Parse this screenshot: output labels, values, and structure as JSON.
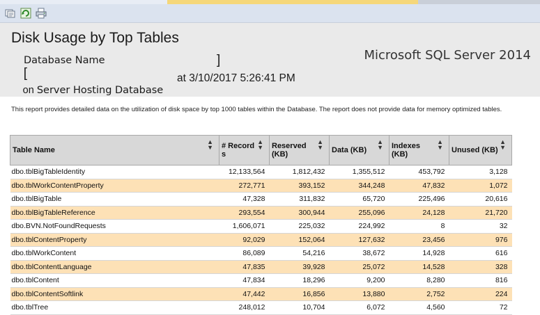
{
  "toolbar": {
    "buttons": [
      "document-map-icon",
      "refresh-icon",
      "print-icon"
    ]
  },
  "header": {
    "title": "Disk Usage by Top Tables",
    "open_bracket": "[",
    "database_name": "Database Name",
    "close_bracket": "]",
    "on_prefix": "on",
    "server_name": "Server Hosting Database",
    "timestamp": "at 3/10/2017 5:26:41 PM",
    "product": "Microsoft SQL Server 2014"
  },
  "description": "This report provides detailed data on the utilization of disk space by top 1000 tables within the Database. The report does not provide data for memory optimized tables.",
  "table": {
    "columns": [
      "Table Name",
      "# Record s",
      "Reserved (KB)",
      "Data (KB)",
      "Indexes (KB)",
      "Unused (KB)"
    ],
    "rows": [
      [
        "dbo.tblBigTableIdentity",
        "12,133,564",
        "1,812,432",
        "1,355,512",
        "453,792",
        "3,128"
      ],
      [
        "dbo.tblWorkContentProperty",
        "272,771",
        "393,152",
        "344,248",
        "47,832",
        "1,072"
      ],
      [
        "dbo.tblBigTable",
        "47,328",
        "311,832",
        "65,720",
        "225,496",
        "20,616"
      ],
      [
        "dbo.tblBigTableReference",
        "293,554",
        "300,944",
        "255,096",
        "24,128",
        "21,720"
      ],
      [
        "dbo.BVN.NotFoundRequests",
        "1,606,071",
        "225,032",
        "224,992",
        "8",
        "32"
      ],
      [
        "dbo.tblContentProperty",
        "92,029",
        "152,064",
        "127,632",
        "23,456",
        "976"
      ],
      [
        "dbo.tblWorkContent",
        "86,089",
        "54,216",
        "38,672",
        "14,928",
        "616"
      ],
      [
        "dbo.tblContentLanguage",
        "47,835",
        "39,928",
        "25,072",
        "14,528",
        "328"
      ],
      [
        "dbo.tblContent",
        "47,834",
        "18,296",
        "9,200",
        "8,280",
        "816"
      ],
      [
        "dbo.tblContentSoftlink",
        "47,442",
        "16,856",
        "13,880",
        "2,752",
        "224"
      ],
      [
        "dbo.tblTree",
        "248,012",
        "10,704",
        "6,072",
        "4,560",
        "72"
      ]
    ]
  },
  "colors": {
    "toolbar": "#dbe3ef",
    "header_bg": "#eaeaea",
    "row_alt": "#fde1b6",
    "column_header": "#d8d8d8"
  }
}
